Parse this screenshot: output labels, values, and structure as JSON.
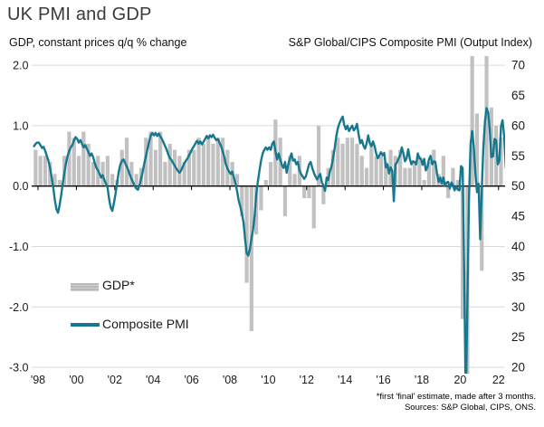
{
  "header": {
    "title": "UK PMI and GDP"
  },
  "axis_captions": {
    "left": "GDP, constant prices q/q % change",
    "right": "S&P Global/CIPS Composite PMI (Output Index)"
  },
  "legend": {
    "gdp": "GDP*",
    "pmi": "Composite PMI"
  },
  "footnote": {
    "line1": "*first 'final' estimate, made after 3 months.",
    "line2": "Sources: S&P Global, CIPS, ONS."
  },
  "colors": {
    "pmi_line": "#16788e",
    "gdp_bar": "#c1c1c1",
    "grid": "#d9d9d9",
    "zero_line": "#000000",
    "title_text": "#3a3a3a",
    "tick_text": "#1a1a1a"
  },
  "chart_data": {
    "type": "bar+line",
    "title": "UK PMI and GDP",
    "grid": "horizontal gridlines on, vertical off",
    "legend_position": "inside plot, lower-left",
    "left_axis": {
      "label": "GDP, constant prices q/q % change",
      "range": [
        -3.0,
        2.0
      ],
      "ticks": [
        {
          "value": 2.0,
          "label": "2.0"
        },
        {
          "value": 1.0,
          "label": "1.0"
        },
        {
          "value": 0.0,
          "label": "0.0"
        },
        {
          "value": -1.0,
          "label": "-1.0"
        },
        {
          "value": -2.0,
          "label": "-2.0"
        },
        {
          "value": -3.0,
          "label": "-3.0"
        }
      ]
    },
    "right_axis": {
      "label": "S&P Global/CIPS Composite PMI (Output Index)",
      "range": [
        20,
        70
      ],
      "ticks": [
        {
          "value": 70,
          "label": "70"
        },
        {
          "value": 65,
          "label": "65"
        },
        {
          "value": 60,
          "label": "60"
        },
        {
          "value": 55,
          "label": "55"
        },
        {
          "value": 50,
          "label": "50"
        },
        {
          "value": 45,
          "label": "45"
        },
        {
          "value": 40,
          "label": "40"
        },
        {
          "value": 35,
          "label": "35"
        },
        {
          "value": 30,
          "label": "30"
        },
        {
          "value": 25,
          "label": "25"
        },
        {
          "value": 20,
          "label": "20"
        }
      ]
    },
    "x_axis": {
      "range_years": [
        1997.9,
        2022.6
      ],
      "ticks": [
        {
          "year": 1998,
          "label": "'98"
        },
        {
          "year": 2000,
          "label": "'00"
        },
        {
          "year": 2002,
          "label": "'02"
        },
        {
          "year": 2004,
          "label": "'04"
        },
        {
          "year": 2006,
          "label": "'06"
        },
        {
          "year": 2008,
          "label": "'08"
        },
        {
          "year": 2010,
          "label": "'10"
        },
        {
          "year": 2012,
          "label": "'12"
        },
        {
          "year": 2014,
          "label": "'14"
        },
        {
          "year": 2016,
          "label": "'16"
        },
        {
          "year": 2018,
          "label": "'18"
        },
        {
          "year": 2020,
          "label": "20"
        },
        {
          "year": 2022,
          "label": "22"
        }
      ]
    },
    "series": [
      {
        "name": "GDP*",
        "type": "bar",
        "axis": "left",
        "unit": "% q/q",
        "frequency": "quarterly",
        "start": "1997-Q4",
        "values": [
          0.6,
          0.5,
          0.5,
          0.4,
          0.2,
          0.1,
          0.5,
          0.9,
          0.8,
          0.5,
          0.9,
          0.7,
          0.4,
          0.5,
          0.4,
          0.5,
          0.2,
          0.1,
          0.6,
          0.8,
          0.4,
          0.2,
          0.3,
          0.8,
          0.9,
          0.6,
          0.9,
          0.4,
          0.7,
          0.6,
          0.5,
          0.4,
          0.6,
          0.6,
          0.8,
          0.7,
          0.8,
          0.7,
          0.8,
          0.8,
          0.6,
          0.4,
          0.2,
          -0.5,
          -1.6,
          -2.4,
          -0.8,
          -0.4,
          0.1,
          0.4,
          1.1,
          0.8,
          -0.5,
          0.5,
          0.2,
          0.5,
          -0.2,
          -0.2,
          -0.7,
          1.0,
          -0.3,
          0.3,
          0.6,
          0.8,
          0.7,
          0.8,
          0.8,
          0.7,
          0.5,
          0.3,
          0.7,
          0.5,
          0.5,
          0.4,
          0.6,
          0.5,
          0.6,
          0.3,
          0.3,
          0.4,
          0.5,
          0.1,
          0.4,
          0.6,
          0.2,
          0.5,
          -0.2,
          0.3,
          0.1,
          -2.2,
          -19.8,
          15.5,
          1.2,
          -1.4,
          4.8,
          1.3,
          1.0,
          0.8
        ]
      },
      {
        "name": "Composite PMI",
        "type": "line",
        "axis": "right",
        "frequency": "monthly",
        "start": "1997-10",
        "values": [
          56.6,
          57.0,
          57.2,
          57.2,
          56.8,
          56.3,
          56.5,
          55.8,
          55.0,
          54.2,
          53.0,
          51.5,
          49.8,
          47.8,
          46.2,
          45.6,
          46.8,
          48.5,
          50.5,
          52.2,
          53.8,
          55.0,
          55.8,
          56.4,
          56.8,
          57.6,
          58.1,
          57.8,
          57.2,
          57.6,
          57.0,
          56.4,
          56.8,
          56.2,
          55.6,
          55.0,
          55.4,
          54.8,
          53.8,
          53.0,
          52.6,
          52.0,
          51.4,
          51.8,
          51.0,
          50.4,
          49.8,
          47.8,
          46.4,
          45.9,
          47.2,
          48.8,
          50.6,
          52.4,
          53.6,
          54.2,
          54.4,
          53.8,
          53.2,
          52.6,
          51.8,
          51.2,
          50.6,
          50.0,
          49.6,
          49.4,
          50.2,
          51.2,
          52.4,
          53.8,
          55.0,
          56.2,
          57.4,
          58.4,
          58.8,
          58.4,
          58.8,
          58.3,
          58.7,
          58.2,
          57.8,
          57.2,
          56.6,
          56.0,
          55.2,
          54.6,
          54.3,
          53.8,
          53.4,
          52.9,
          52.5,
          52.2,
          52.6,
          53.2,
          53.8,
          54.2,
          54.6,
          55.1,
          55.6,
          56.2,
          56.6,
          57.1,
          57.5,
          57.0,
          57.4,
          56.9,
          57.3,
          57.8,
          58.3,
          57.9,
          58.4,
          58.1,
          58.5,
          58.0,
          57.6,
          57.8,
          57.2,
          56.6,
          55.8,
          54.8,
          53.6,
          52.9,
          52.4,
          52.0,
          52.4,
          51.4,
          50.4,
          49.2,
          47.6,
          46.6,
          45.4,
          44.0,
          41.2,
          38.9,
          38.5,
          39.6,
          41.4,
          42.8,
          45.2,
          48.6,
          50.8,
          52.6,
          54.2,
          55.4,
          56.0,
          56.4,
          56.0,
          56.4,
          56.0,
          57.0,
          57.4,
          55.8,
          54.4,
          55.4,
          54.4,
          53.5,
          53.0,
          54.0,
          52.2,
          53.6,
          54.6,
          55.4,
          54.2,
          54.4,
          53.6,
          54.0,
          52.6,
          52.0,
          51.6,
          51.2,
          51.6,
          52.6,
          53.6,
          54.0,
          53.0,
          52.2,
          51.6,
          51.1,
          51.6,
          52.0,
          50.6,
          50.1,
          49.2,
          51.4,
          51.0,
          52.4,
          53.2,
          54.6,
          56.2,
          58.2,
          59.6,
          60.4,
          61.0,
          61.5,
          60.1,
          59.4,
          60.0,
          59.1,
          59.6,
          60.0,
          59.2,
          59.6,
          60.3,
          58.5,
          57.1,
          57.6,
          56.7,
          56.2,
          57.1,
          58.4,
          57.1,
          56.6,
          57.4,
          56.6,
          55.4,
          54.6,
          55.1,
          55.6,
          55.1,
          55.5,
          53.1,
          53.6,
          52.1,
          53.1,
          52.5,
          47.5,
          53.6,
          53.9,
          54.6,
          55.1,
          56.4,
          55.4,
          54.1,
          54.6,
          56.1,
          54.5,
          53.6,
          54.1,
          54.0,
          53.6,
          55.4,
          54.6,
          54.5,
          53.5,
          54.5,
          52.6,
          53.1,
          54.4,
          55.0,
          53.6,
          54.1,
          54.0,
          52.1,
          50.7,
          51.4,
          50.4,
          51.4,
          50.0,
          50.6,
          50.7,
          49.6,
          50.6,
          50.2,
          49.3,
          50.0,
          49.4,
          49.3,
          53.3,
          53.0,
          36.0,
          13.8,
          30.0,
          47.7,
          57.0,
          59.1,
          56.5,
          52.1,
          49.0,
          50.4,
          41.2,
          49.6,
          56.4,
          60.7,
          62.9,
          62.2,
          59.2,
          54.8,
          54.9,
          57.8,
          57.6,
          53.6,
          54.2,
          59.9,
          60.9,
          58.2,
          53.1,
          53.7
        ]
      }
    ]
  }
}
